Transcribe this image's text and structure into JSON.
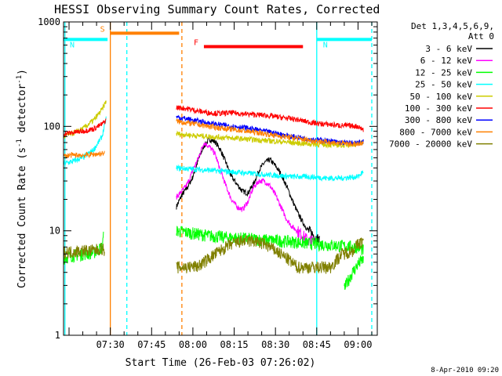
{
  "chart_data": {
    "type": "line",
    "title": "HESSI Observing Summary Count Rates, Corrected",
    "xlabel": "Start Time (26-Feb-03 07:26:02)",
    "ylabel_main": "Corrected Count Rate (s",
    "ylabel_sup1": "-1",
    "ylabel_mid": " detector",
    "ylabel_sup2": "-1",
    "ylabel_end": ")",
    "x_unit": "minutes",
    "xlim": [
      433,
      547
    ],
    "ylim": [
      1,
      1000
    ],
    "yscale": "log",
    "x_ticks": [
      {
        "value": 450,
        "label": "07:30"
      },
      {
        "value": 465,
        "label": "07:45"
      },
      {
        "value": 480,
        "label": "08:00"
      },
      {
        "value": 495,
        "label": "08:15"
      },
      {
        "value": 510,
        "label": "08:30"
      },
      {
        "value": 525,
        "label": "08:45"
      },
      {
        "value": 540,
        "label": "09:00"
      }
    ],
    "y_ticks": [
      {
        "value": 1,
        "label": "1"
      },
      {
        "value": 10,
        "label": "10"
      },
      {
        "value": 100,
        "label": "100"
      },
      {
        "value": 1000,
        "label": "1000"
      }
    ],
    "legend": {
      "position": "right",
      "header1": "Det 1,3,4,5,6,9,",
      "header2": "Att 0"
    },
    "series": [
      {
        "name": "3 - 6 keV",
        "color": "#000000",
        "segments": [
          {
            "x": [
              474,
              476,
              478,
              480,
              482,
              484,
              486,
              488,
              490,
              492,
              494,
              496,
              498,
              500,
              502,
              504,
              506,
              508,
              510,
              512,
              514,
              516,
              518,
              520,
              522,
              524,
              526
            ],
            "y": [
              17,
              22,
              26,
              33,
              48,
              65,
              75,
              72,
              60,
              45,
              33,
              28,
              24,
              23,
              28,
              38,
              45,
              48,
              42,
              35,
              27,
              20,
              15,
              12,
              10,
              9,
              8
            ]
          }
        ]
      },
      {
        "name": "6 - 12 keV",
        "color": "#ff00ff",
        "segments": [
          {
            "x": [
              474,
              476,
              478,
              480,
              482,
              484,
              486,
              488,
              490,
              492,
              494,
              496,
              498,
              500,
              502,
              504,
              506,
              508,
              510,
              512,
              514,
              516,
              518,
              520,
              522,
              524
            ],
            "y": [
              21,
              24,
              28,
              38,
              50,
              70,
              64,
              55,
              38,
              27,
              20,
              17,
              16,
              19,
              26,
              30,
              30,
              27,
              22,
              17,
              13,
              11,
              10,
              9,
              8,
              8
            ]
          }
        ]
      },
      {
        "name": "12 - 25 keV",
        "color": "#00ff00",
        "segments": [
          {
            "x": [
              433,
              436,
              440,
              444,
              447,
              447.6
            ],
            "y": [
              5.5,
              5.8,
              6,
              6.2,
              7,
              9
            ]
          },
          {
            "x": [
              474,
              480,
              486,
              492,
              498,
              504,
              510,
              516,
              522,
              528,
              534,
              540,
              542
            ],
            "y": [
              10,
              9.5,
              9,
              8.7,
              8.5,
              8.3,
              8.1,
              7.9,
              7.6,
              7.4,
              7.2,
              7,
              6.5
            ]
          },
          {
            "x": [
              535,
              536,
              538,
              540,
              542
            ],
            "y": [
              2.8,
              3.2,
              4,
              4.8,
              5.4
            ]
          }
        ]
      },
      {
        "name": "25 - 50 keV",
        "color": "#00ffff",
        "segments": [
          {
            "x": [
              433,
              436,
              440,
              444,
              447,
              448.5
            ],
            "y": [
              44,
              46,
              50,
              60,
              80,
              120
            ]
          },
          {
            "x": [
              474,
              480,
              486,
              492,
              498,
              504,
              510,
              516,
              522,
              528,
              534,
              540,
              542
            ],
            "y": [
              40,
              39,
              38,
              37,
              36,
              35,
              34,
              33,
              33,
              32,
              32,
              33,
              37
            ]
          }
        ]
      },
      {
        "name": "50 - 100 keV",
        "color": "#cccc00",
        "segments": [
          {
            "x": [
              433,
              436,
              440,
              444,
              447,
              448.5
            ],
            "y": [
              80,
              85,
              95,
              115,
              145,
              175
            ]
          },
          {
            "x": [
              474,
              480,
              486,
              492,
              498,
              504,
              510,
              516,
              522,
              528,
              534,
              540,
              542
            ],
            "y": [
              85,
              82,
              80,
              78,
              76,
              74,
              72,
              70,
              68,
              67,
              66,
              68,
              70
            ]
          }
        ]
      },
      {
        "name": "100 - 300 keV",
        "color": "#ff0000",
        "segments": [
          {
            "x": [
              433,
              436,
              440,
              444,
              447,
              448.5
            ],
            "y": [
              85,
              87,
              90,
              95,
              105,
              115
            ]
          },
          {
            "x": [
              474,
              478,
              482,
              486,
              490,
              494,
              498,
              502,
              506,
              510,
              514,
              518,
              522,
              526,
              530,
              534,
              538,
              540,
              542
            ],
            "y": [
              152,
              148,
              140,
              135,
              133,
              135,
              132,
              130,
              128,
              124,
              120,
              116,
              110,
              106,
              104,
              102,
              101,
              100,
              93
            ]
          }
        ]
      },
      {
        "name": "300 - 800 keV",
        "color": "#0000ff",
        "segments": [
          {
            "x": [
              474,
              480,
              486,
              492,
              498,
              504,
              510,
              516,
              522,
              528,
              534,
              540,
              542
            ],
            "y": [
              123,
              115,
              107,
              102,
              98,
              92,
              86,
              80,
              76,
              73,
              70,
              69,
              72
            ]
          }
        ]
      },
      {
        "name": "800 - 7000 keV",
        "color": "#ff8000",
        "segments": [
          {
            "x": [
              433,
              436,
              440,
              444,
              447,
              448
            ],
            "y": [
              52,
              53,
              53,
              54,
              55,
              56
            ]
          },
          {
            "x": [
              474,
              480,
              486,
              492,
              498,
              504,
              510,
              516,
              522,
              528,
              534,
              540,
              542
            ],
            "y": [
              112,
              106,
              100,
              95,
              91,
              87,
              82,
              78,
              74,
              71,
              69,
              67,
              68
            ]
          }
        ]
      },
      {
        "name": "7000 - 20000 keV",
        "color": "#808000",
        "segments": [
          {
            "x": [
              433,
              436,
              440,
              444,
              447,
              448
            ],
            "y": [
              6.3,
              6.3,
              6.5,
              6.5,
              6.8,
              6.5
            ]
          },
          {
            "x": [
              474,
              478,
              482,
              486,
              490,
              494,
              498,
              502,
              506,
              510,
              514,
              518,
              522,
              526,
              530,
              534,
              538,
              540,
              542
            ],
            "y": [
              4.5,
              4.5,
              4.6,
              5.5,
              6.5,
              7.5,
              8,
              8,
              7.5,
              6.5,
              5.5,
              4.5,
              4.5,
              4.5,
              4.5,
              6,
              6.5,
              7.5,
              8
            ]
          }
        ]
      }
    ],
    "flag_lines": [
      {
        "label": "S",
        "color": "#ff8000",
        "x_start": 450,
        "x_end": 475,
        "y": 780
      },
      {
        "label": "N",
        "color": "#00ffff",
        "x_start": 433,
        "x_end": 449,
        "y": 680
      },
      {
        "label": "N",
        "color": "#00ffff",
        "x_start": 525,
        "x_end": 545,
        "y": 680
      },
      {
        "label": "F",
        "color": "#ff0000",
        "x_start": 484,
        "x_end": 520,
        "y": 580
      }
    ],
    "vlines": [
      {
        "x": 433.5,
        "color": "#00ffff",
        "style": "solid"
      },
      {
        "x": 450,
        "color": "#ff8000",
        "style": "solid"
      },
      {
        "x": 456,
        "color": "#00ffff",
        "style": "dashed"
      },
      {
        "x": 476,
        "color": "#ff8000",
        "style": "dashed"
      },
      {
        "x": 525,
        "color": "#00ffff",
        "style": "solid"
      },
      {
        "x": 545,
        "color": "#00ffff",
        "style": "dashed"
      }
    ],
    "timestamp": "8-Apr-2010 09:20"
  }
}
